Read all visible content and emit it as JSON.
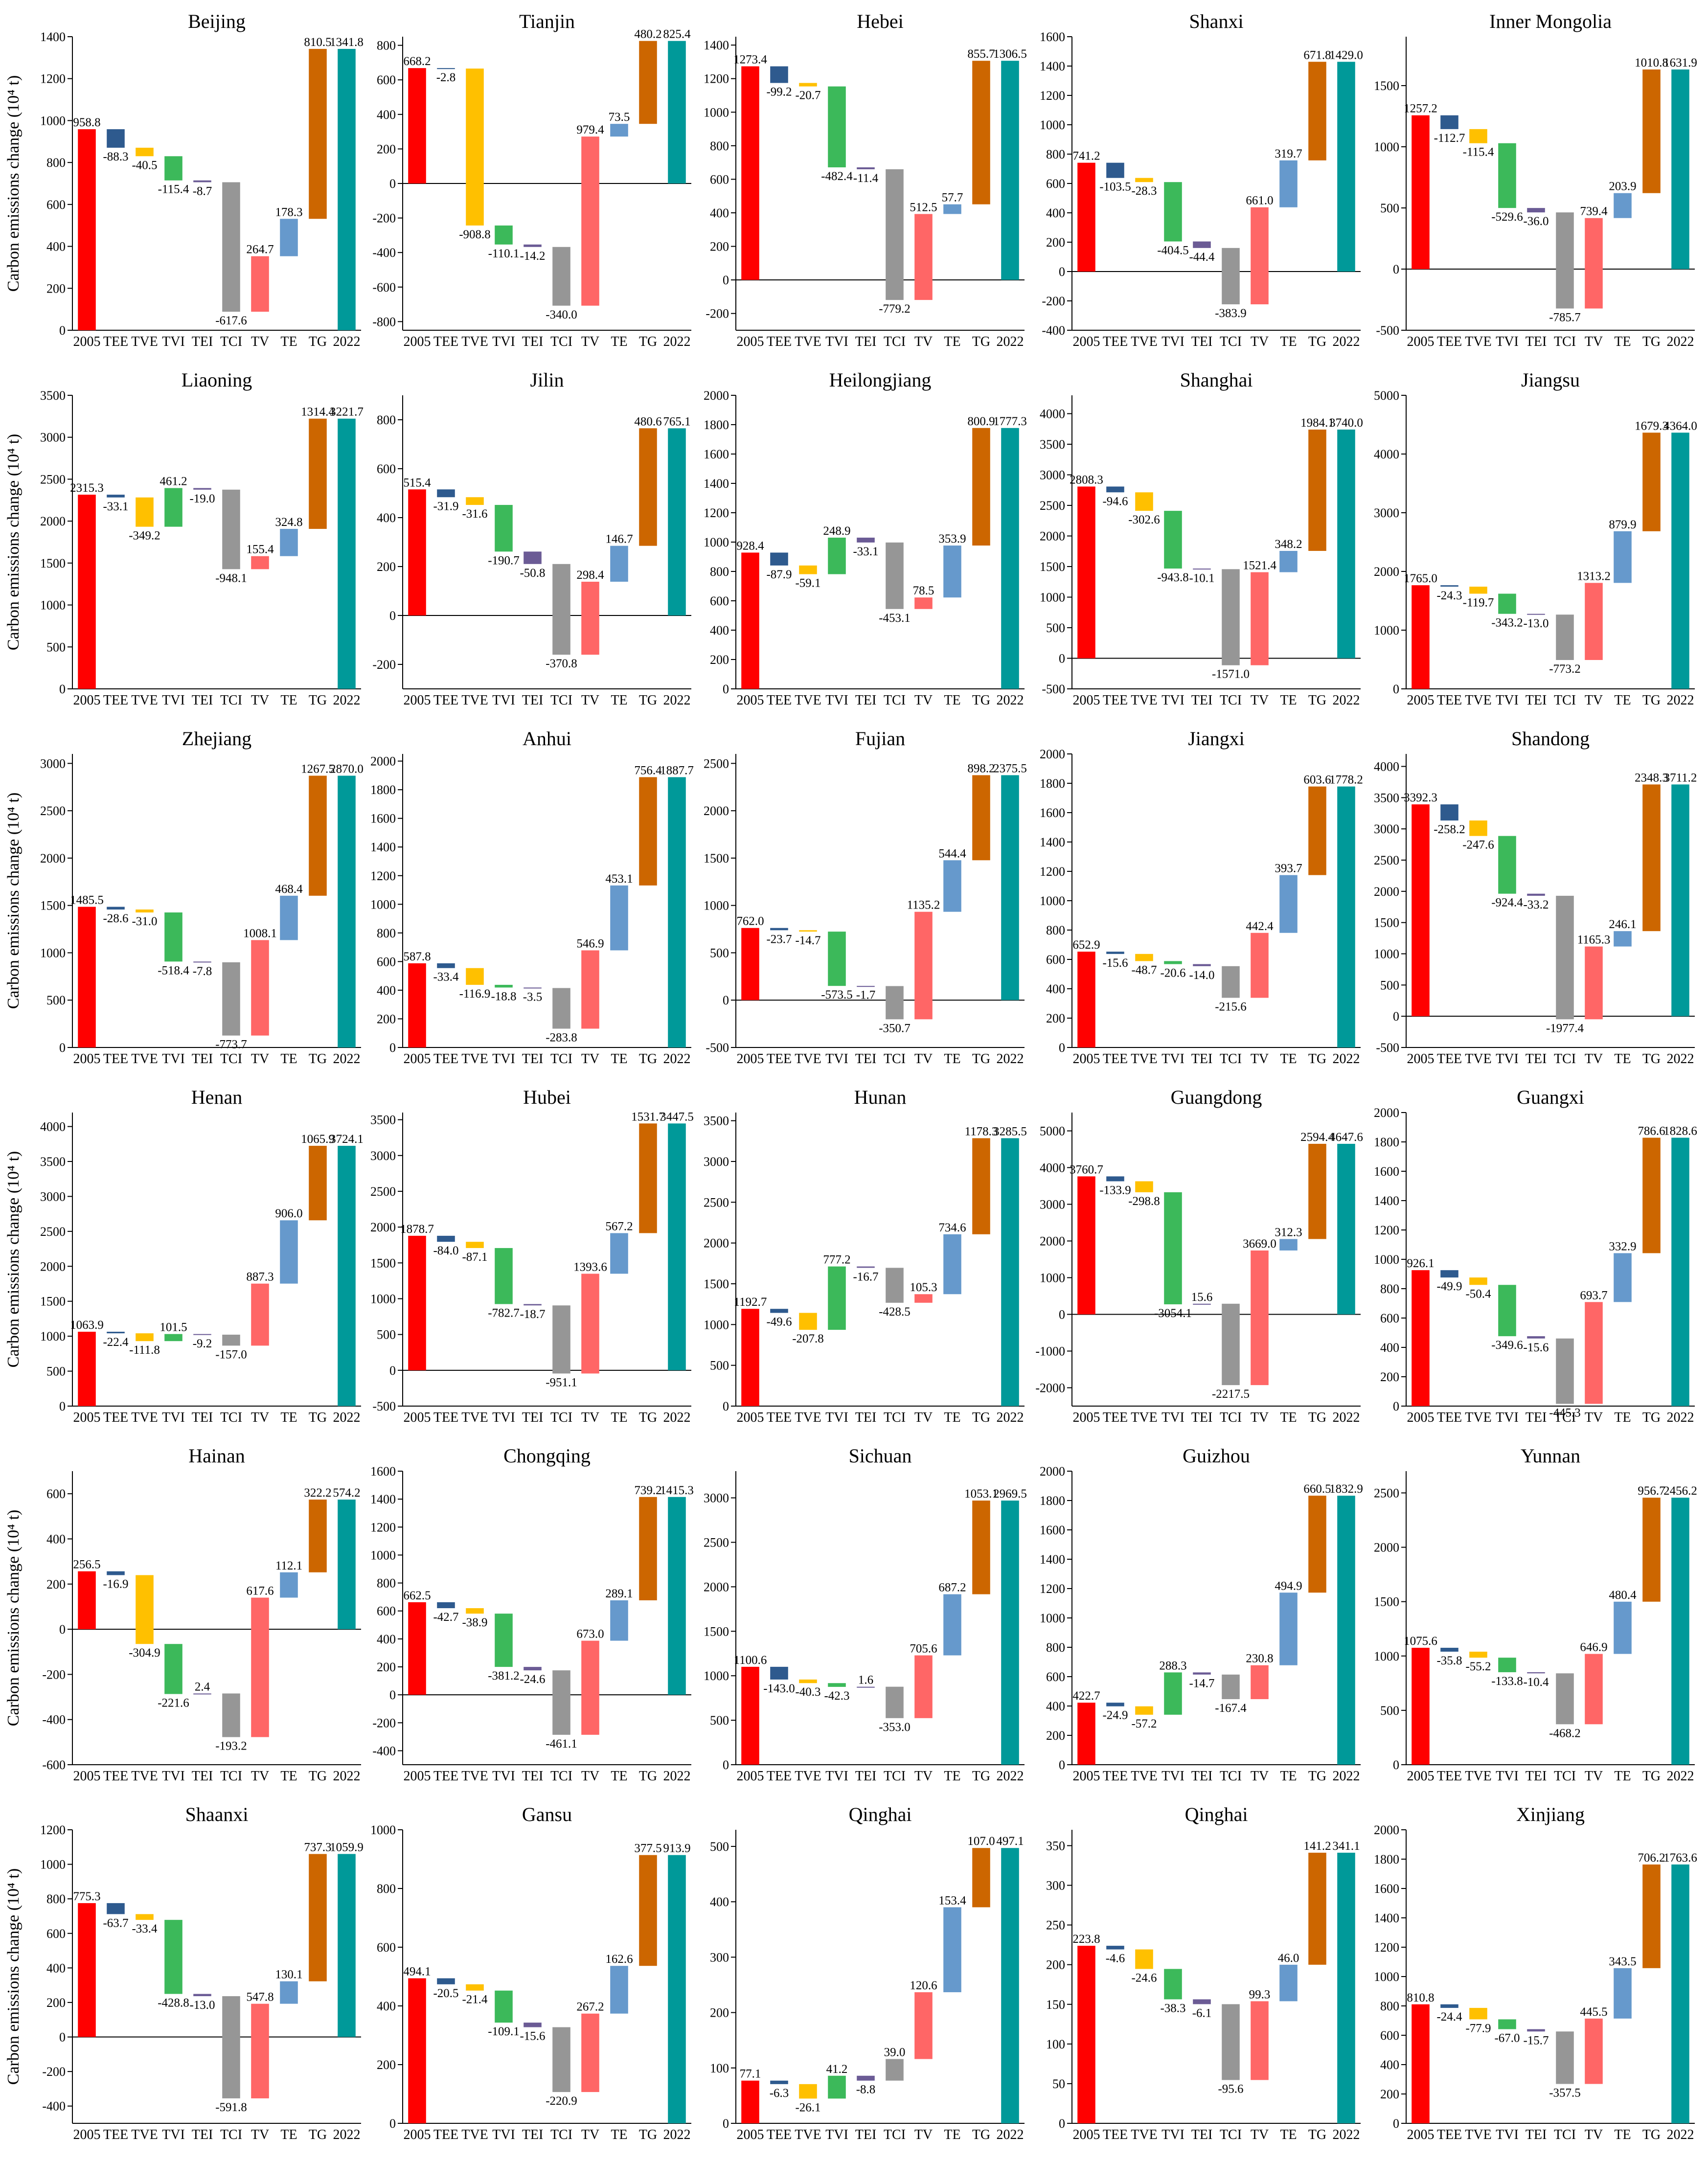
{
  "figure": {
    "ylabel": "Carbon emissions change (10⁴ t)"
  },
  "colors": {
    "2005": "#ff0000",
    "TEE": "#2e5a8e",
    "TVE": "#ffc000",
    "TVI": "#3cb95a",
    "TEI": "#6b5b95",
    "TCI": "#969696",
    "TV": "#ff6666",
    "TE": "#6699cc",
    "TG": "#cc6600",
    "2022": "#009999"
  },
  "chart_data": [
    {
      "type": "waterfall",
      "title": "Beijing",
      "categories": [
        "2005",
        "TEE",
        "TVE",
        "TVI",
        "TEI",
        "TCI",
        "TV",
        "TE",
        "TG",
        "2022"
      ],
      "values": [
        958.8,
        -88.3,
        -40.5,
        -115.4,
        -8.7,
        -617.6,
        264.7,
        178.3,
        810.5,
        1341.8
      ],
      "ylim": [
        0,
        1400
      ],
      "yticks": [
        0,
        200,
        400,
        600,
        800,
        1000,
        1200,
        1400
      ]
    },
    {
      "type": "waterfall",
      "title": "Tianjin",
      "categories": [
        "2005",
        "TEE",
        "TVE",
        "TVI",
        "TEI",
        "TCI",
        "TV",
        "TE",
        "TG",
        "2022"
      ],
      "values": [
        668.2,
        -2.8,
        -908.8,
        -110.1,
        -14.2,
        -340.0,
        979.4,
        73.5,
        480.2,
        825.4
      ],
      "ylim": [
        -850,
        850
      ],
      "yticks": [
        -800,
        -600,
        -400,
        -200,
        0,
        200,
        400,
        600,
        800
      ]
    },
    {
      "type": "waterfall",
      "title": "Hebei",
      "categories": [
        "2005",
        "TEE",
        "TVE",
        "TVI",
        "TEI",
        "TCI",
        "TV",
        "TE",
        "TG",
        "2022"
      ],
      "values": [
        1273.4,
        -99.2,
        -20.7,
        -482.4,
        -11.4,
        -779.2,
        512.5,
        57.7,
        855.7,
        1306.5
      ],
      "ylim": [
        -300,
        1450
      ],
      "yticks": [
        -200,
        0,
        200,
        400,
        600,
        800,
        1000,
        1200,
        1400
      ]
    },
    {
      "type": "waterfall",
      "title": "Shanxi",
      "categories": [
        "2005",
        "TEE",
        "TVE",
        "TVI",
        "TEI",
        "TCI",
        "TV",
        "TE",
        "TG",
        "2022"
      ],
      "values": [
        741.2,
        -103.5,
        -28.3,
        -404.5,
        -44.4,
        -383.9,
        661.0,
        319.7,
        671.8,
        1429.0
      ],
      "ylim": [
        -400,
        1600
      ],
      "yticks": [
        -400,
        -200,
        0,
        200,
        400,
        600,
        800,
        1000,
        1200,
        1400,
        1600
      ]
    },
    {
      "type": "waterfall",
      "title": "Inner Mongolia",
      "categories": [
        "2005",
        "TEE",
        "TVE",
        "TVI",
        "TEI",
        "TCI",
        "TV",
        "TE",
        "TG",
        "2022"
      ],
      "values": [
        1257.2,
        -112.7,
        -115.4,
        -529.6,
        -36.0,
        -785.7,
        739.4,
        203.9,
        1010.8,
        1631.9
      ],
      "ylim": [
        -500,
        1900
      ],
      "yticks": [
        -500,
        0,
        500,
        1000,
        1500
      ]
    },
    {
      "type": "waterfall",
      "title": "Liaoning",
      "categories": [
        "2005",
        "TEE",
        "TVE",
        "TVI",
        "TEI",
        "TCI",
        "TV",
        "TE",
        "TG",
        "2022"
      ],
      "values": [
        2315.3,
        -33.1,
        -349.2,
        461.2,
        -19.0,
        -948.1,
        155.4,
        324.8,
        1314.4,
        3221.7
      ],
      "ylim": [
        0,
        3500
      ],
      "yticks": [
        0,
        500,
        1000,
        1500,
        2000,
        2500,
        3000,
        3500
      ]
    },
    {
      "type": "waterfall",
      "title": "Jilin",
      "categories": [
        "2005",
        "TEE",
        "TVE",
        "TVI",
        "TEI",
        "TCI",
        "TV",
        "TE",
        "TG",
        "2022"
      ],
      "values": [
        515.4,
        -31.9,
        -31.6,
        -190.7,
        -50.8,
        -370.8,
        298.4,
        146.7,
        480.6,
        765.1
      ],
      "ylim": [
        -300,
        900
      ],
      "yticks": [
        -200,
        0,
        200,
        400,
        600,
        800
      ]
    },
    {
      "type": "waterfall",
      "title": "Heilongjiang",
      "categories": [
        "2005",
        "TEE",
        "TVE",
        "TVI",
        "TEI",
        "TCI",
        "TV",
        "TE",
        "TG",
        "2022"
      ],
      "values": [
        928.4,
        -87.9,
        -59.1,
        248.9,
        -33.1,
        -453.1,
        78.5,
        353.9,
        800.9,
        1777.3
      ],
      "ylim": [
        0,
        2000
      ],
      "yticks": [
        0,
        200,
        400,
        600,
        800,
        1000,
        1200,
        1400,
        1600,
        1800,
        2000
      ]
    },
    {
      "type": "waterfall",
      "title": "Shanghai",
      "categories": [
        "2005",
        "TEE",
        "TVE",
        "TVI",
        "TEI",
        "TCI",
        "TV",
        "TE",
        "TG",
        "2022"
      ],
      "values": [
        2808.3,
        -94.6,
        -302.6,
        -943.8,
        -10.1,
        -1571.0,
        1521.4,
        348.2,
        1984.1,
        3740.0
      ],
      "ylim": [
        -500,
        4300
      ],
      "yticks": [
        -500,
        0,
        500,
        1000,
        1500,
        2000,
        2500,
        3000,
        3500,
        4000
      ]
    },
    {
      "type": "waterfall",
      "title": "Jiangsu",
      "categories": [
        "2005",
        "TEE",
        "TVE",
        "TVI",
        "TEI",
        "TCI",
        "TV",
        "TE",
        "TG",
        "2022"
      ],
      "values": [
        1765.0,
        -24.3,
        -119.7,
        -343.2,
        -13.0,
        -773.2,
        1313.2,
        879.9,
        1679.3,
        4364.0
      ],
      "ylim": [
        0,
        5000
      ],
      "yticks": [
        0,
        1000,
        2000,
        3000,
        4000,
        5000
      ]
    },
    {
      "type": "waterfall",
      "title": "Zhejiang",
      "categories": [
        "2005",
        "TEE",
        "TVE",
        "TVI",
        "TEI",
        "TCI",
        "TV",
        "TE",
        "TG",
        "2022"
      ],
      "values": [
        1485.5,
        -28.6,
        -31.0,
        -518.4,
        -7.8,
        -773.7,
        1008.1,
        468.4,
        1267.5,
        2870.0
      ],
      "ylim": [
        0,
        3100
      ],
      "yticks": [
        0,
        500,
        1000,
        1500,
        2000,
        2500,
        3000
      ]
    },
    {
      "type": "waterfall",
      "title": "Anhui",
      "categories": [
        "2005",
        "TEE",
        "TVE",
        "TVI",
        "TEI",
        "TCI",
        "TV",
        "TE",
        "TG",
        "2022"
      ],
      "values": [
        587.8,
        -33.4,
        -116.9,
        -18.8,
        -3.5,
        -283.8,
        546.9,
        453.1,
        756.4,
        1887.7
      ],
      "ylim": [
        0,
        2050
      ],
      "yticks": [
        0,
        200,
        400,
        600,
        800,
        1000,
        1200,
        1400,
        1600,
        1800,
        2000
      ]
    },
    {
      "type": "waterfall",
      "title": "Fujian",
      "categories": [
        "2005",
        "TEE",
        "TVE",
        "TVI",
        "TEI",
        "TCI",
        "TV",
        "TE",
        "TG",
        "2022"
      ],
      "values": [
        762.0,
        -23.7,
        -14.7,
        -573.5,
        -1.7,
        -350.7,
        1135.2,
        544.4,
        898.2,
        2375.5
      ],
      "ylim": [
        -500,
        2600
      ],
      "yticks": [
        -500,
        0,
        500,
        1000,
        1500,
        2000,
        2500
      ]
    },
    {
      "type": "waterfall",
      "title": "Jiangxi",
      "categories": [
        "2005",
        "TEE",
        "TVE",
        "TVI",
        "TEI",
        "TCI",
        "TV",
        "TE",
        "TG",
        "2022"
      ],
      "values": [
        652.9,
        -15.6,
        -48.7,
        -20.6,
        -14.0,
        -215.6,
        442.4,
        393.7,
        603.6,
        1778.2
      ],
      "ylim": [
        0,
        2000
      ],
      "yticks": [
        0,
        200,
        400,
        600,
        800,
        1000,
        1200,
        1400,
        1600,
        1800,
        2000
      ]
    },
    {
      "type": "waterfall",
      "title": "Shandong",
      "categories": [
        "2005",
        "TEE",
        "TVE",
        "TVI",
        "TEI",
        "TCI",
        "TV",
        "TE",
        "TG",
        "2022"
      ],
      "values": [
        3392.3,
        -258.2,
        -247.6,
        -924.4,
        -33.2,
        -1977.4,
        1165.3,
        246.1,
        2348.3,
        3711.2
      ],
      "ylim": [
        -500,
        4200
      ],
      "yticks": [
        -500,
        0,
        500,
        1000,
        1500,
        2000,
        2500,
        3000,
        3500,
        4000
      ]
    },
    {
      "type": "waterfall",
      "title": "Henan",
      "categories": [
        "2005",
        "TEE",
        "TVE",
        "TVI",
        "TEI",
        "TCI",
        "TV",
        "TE",
        "TG",
        "2022"
      ],
      "values": [
        1063.9,
        -22.4,
        -111.8,
        101.5,
        -9.2,
        -157.0,
        887.3,
        906.0,
        1065.9,
        3724.1
      ],
      "ylim": [
        0,
        4200
      ],
      "yticks": [
        0,
        500,
        1000,
        1500,
        2000,
        2500,
        3000,
        3500,
        4000
      ]
    },
    {
      "type": "waterfall",
      "title": "Hubei",
      "categories": [
        "2005",
        "TEE",
        "TVE",
        "TVI",
        "TEI",
        "TCI",
        "TV",
        "TE",
        "TG",
        "2022"
      ],
      "values": [
        1878.7,
        -84.0,
        -87.1,
        -782.7,
        -18.7,
        -951.1,
        1393.6,
        567.2,
        1531.7,
        3447.5
      ],
      "ylim": [
        -500,
        3600
      ],
      "yticks": [
        -500,
        0,
        500,
        1000,
        1500,
        2000,
        2500,
        3000,
        3500
      ]
    },
    {
      "type": "waterfall",
      "title": "Hunan",
      "categories": [
        "2005",
        "TEE",
        "TVE",
        "TVI",
        "TEI",
        "TCI",
        "TV",
        "TE",
        "TG",
        "2022"
      ],
      "values": [
        1192.7,
        -49.6,
        -207.8,
        777.2,
        -16.7,
        -428.5,
        105.3,
        734.6,
        1178.3,
        3285.5
      ],
      "ylim": [
        0,
        3600
      ],
      "yticks": [
        0,
        500,
        1000,
        1500,
        2000,
        2500,
        3000,
        3500
      ]
    },
    {
      "type": "waterfall",
      "title": "Guangdong",
      "categories": [
        "2005",
        "TEE",
        "TVE",
        "TVI",
        "TEI",
        "TCI",
        "TV",
        "TE",
        "TG",
        "2022"
      ],
      "values": [
        3760.7,
        -133.9,
        -298.8,
        -3054.1,
        15.6,
        -2217.5,
        3669.0,
        312.3,
        2594.4,
        4647.6
      ],
      "ylim": [
        -2500,
        5500
      ],
      "yticks": [
        -2000,
        -1000,
        0,
        1000,
        2000,
        3000,
        4000,
        5000
      ]
    },
    {
      "type": "waterfall",
      "title": "Guangxi",
      "categories": [
        "2005",
        "TEE",
        "TVE",
        "TVI",
        "TEI",
        "TCI",
        "TV",
        "TE",
        "TG",
        "2022"
      ],
      "values": [
        926.1,
        -49.9,
        -50.4,
        -349.6,
        -15.6,
        -445.3,
        693.7,
        332.9,
        786.6,
        1828.6
      ],
      "ylim": [
        0,
        2000
      ],
      "yticks": [
        0,
        200,
        400,
        600,
        800,
        1000,
        1200,
        1400,
        1600,
        1800,
        2000
      ]
    },
    {
      "type": "waterfall",
      "title": "Hainan",
      "categories": [
        "2005",
        "TEE",
        "TVE",
        "TVI",
        "TEI",
        "TCI",
        "TV",
        "TE",
        "TG",
        "2022"
      ],
      "values": [
        256.5,
        -16.9,
        -304.9,
        -221.6,
        2.4,
        -193.2,
        617.6,
        112.1,
        322.2,
        574.2
      ],
      "ylim": [
        -600,
        700
      ],
      "yticks": [
        -600,
        -400,
        -200,
        0,
        200,
        400,
        600
      ]
    },
    {
      "type": "waterfall",
      "title": "Chongqing",
      "categories": [
        "2005",
        "TEE",
        "TVE",
        "TVI",
        "TEI",
        "TCI",
        "TV",
        "TE",
        "TG",
        "2022"
      ],
      "values": [
        662.5,
        -42.7,
        -38.9,
        -381.2,
        -24.6,
        -461.1,
        673.0,
        289.1,
        739.2,
        1415.3
      ],
      "ylim": [
        -500,
        1600
      ],
      "yticks": [
        -400,
        -200,
        0,
        200,
        400,
        600,
        800,
        1000,
        1200,
        1400,
        1600
      ]
    },
    {
      "type": "waterfall",
      "title": "Sichuan",
      "categories": [
        "2005",
        "TEE",
        "TVE",
        "TVI",
        "TEI",
        "TCI",
        "TV",
        "TE",
        "TG",
        "2022"
      ],
      "values": [
        1100.6,
        -143.0,
        -40.3,
        -42.3,
        1.6,
        -353.0,
        705.6,
        687.2,
        1053.1,
        2969.5
      ],
      "ylim": [
        0,
        3300
      ],
      "yticks": [
        0,
        500,
        1000,
        1500,
        2000,
        2500,
        3000
      ]
    },
    {
      "type": "waterfall",
      "title": "Guizhou",
      "categories": [
        "2005",
        "TEE",
        "TVE",
        "TVI",
        "TEI",
        "TCI",
        "TV",
        "TE",
        "TG",
        "2022"
      ],
      "values": [
        422.7,
        -24.9,
        -57.2,
        288.3,
        -14.7,
        -167.4,
        230.8,
        494.9,
        660.5,
        1832.9
      ],
      "ylim": [
        0,
        2000
      ],
      "yticks": [
        0,
        200,
        400,
        600,
        800,
        1000,
        1200,
        1400,
        1600,
        1800,
        2000
      ]
    },
    {
      "type": "waterfall",
      "title": "Yunnan",
      "categories": [
        "2005",
        "TEE",
        "TVE",
        "TVI",
        "TEI",
        "TCI",
        "TV",
        "TE",
        "TG",
        "2022"
      ],
      "values": [
        1075.6,
        -35.8,
        -55.2,
        -133.8,
        -10.4,
        -468.2,
        646.9,
        480.4,
        956.7,
        2456.2
      ],
      "ylim": [
        0,
        2700
      ],
      "yticks": [
        0,
        500,
        1000,
        1500,
        2000,
        2500
      ]
    },
    {
      "type": "waterfall",
      "title": "Shaanxi",
      "categories": [
        "2005",
        "TEE",
        "TVE",
        "TVI",
        "TEI",
        "TCI",
        "TV",
        "TE",
        "TG",
        "2022"
      ],
      "values": [
        775.3,
        -63.7,
        -33.4,
        -428.8,
        -13.0,
        -591.8,
        547.8,
        130.1,
        737.3,
        1059.9
      ],
      "ylim": [
        -500,
        1200
      ],
      "yticks": [
        -400,
        -200,
        0,
        200,
        400,
        600,
        800,
        1000,
        1200
      ]
    },
    {
      "type": "waterfall",
      "title": "Gansu",
      "categories": [
        "2005",
        "TEE",
        "TVE",
        "TVI",
        "TEI",
        "TCI",
        "TV",
        "TE",
        "TG",
        "2022"
      ],
      "values": [
        494.1,
        -20.5,
        -21.4,
        -109.1,
        -15.6,
        -220.9,
        267.2,
        162.6,
        377.5,
        913.9
      ],
      "ylim": [
        0,
        1000
      ],
      "yticks": [
        0,
        200,
        400,
        600,
        800,
        1000
      ]
    },
    {
      "type": "waterfall",
      "title": "Qinghai",
      "categories": [
        "2005",
        "TEE",
        "TVE",
        "TVI",
        "TEI",
        "TCI",
        "TV",
        "TE",
        "TG",
        "2022"
      ],
      "values": [
        77.1,
        -6.3,
        -26.1,
        41.2,
        -8.8,
        39.0,
        120.6,
        153.4,
        107.0,
        497.1
      ],
      "ylim": [
        0,
        530
      ],
      "yticks": [
        0,
        100,
        200,
        300,
        400,
        500
      ]
    },
    {
      "type": "waterfall",
      "title": "Qinghai",
      "categories": [
        "2005",
        "TEE",
        "TVE",
        "TVI",
        "TEI",
        "TCI",
        "TV",
        "TE",
        "TG",
        "2022"
      ],
      "values": [
        223.8,
        -4.6,
        -24.6,
        -38.3,
        -6.1,
        -95.6,
        99.3,
        46.0,
        141.2,
        341.1
      ],
      "ylim": [
        0,
        370
      ],
      "yticks": [
        0,
        50,
        100,
        150,
        200,
        250,
        300,
        350
      ]
    },
    {
      "type": "waterfall",
      "title": "Xinjiang",
      "categories": [
        "2005",
        "TEE",
        "TVE",
        "TVI",
        "TEI",
        "TCI",
        "TV",
        "TE",
        "TG",
        "2022"
      ],
      "values": [
        810.8,
        -24.4,
        -77.9,
        -67.0,
        -15.7,
        -357.5,
        445.5,
        343.5,
        706.2,
        1763.6
      ],
      "ylim": [
        0,
        2000
      ],
      "yticks": [
        0,
        200,
        400,
        600,
        800,
        1000,
        1200,
        1400,
        1600,
        1800,
        2000
      ]
    }
  ]
}
